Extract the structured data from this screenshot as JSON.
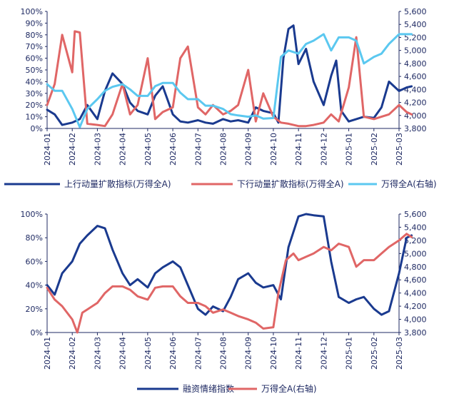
{
  "chart_data": [
    {
      "type": "line",
      "x_ticks": [
        "2024-01",
        "2024-02",
        "2024-03",
        "2024-04",
        "2024-05",
        "2024-06",
        "2024-07",
        "2024-08",
        "2024-09",
        "2024-10",
        "2024-11",
        "2024-12",
        "2025-01",
        "2025-02",
        "2025-03"
      ],
      "y_left": {
        "min": 0,
        "max": 100,
        "step": 10,
        "tick_labels": [
          "0%",
          "10%",
          "20%",
          "30%",
          "40%",
          "50%",
          "60%",
          "70%",
          "80%",
          "90%",
          "100%"
        ]
      },
      "y_right": {
        "min": 3800,
        "max": 5600,
        "step": 200,
        "tick_labels": [
          "3,800",
          "4,000",
          "4,200",
          "4,400",
          "4,600",
          "4,800",
          "5,000",
          "5,200",
          "5,400",
          "5,600"
        ]
      },
      "grid": false,
      "legend_position": "bottom",
      "series": [
        {
          "name": "上行动量扩散指标(万得全A)",
          "axis": "left",
          "color": "#1a3a8f",
          "x": [
            0,
            0.3,
            0.6,
            1,
            1.3,
            1.6,
            2,
            2.3,
            2.6,
            3,
            3.3,
            3.6,
            4,
            4.3,
            4.6,
            5,
            5.3,
            5.6,
            6,
            6.3,
            6.6,
            7,
            7.3,
            7.6,
            8,
            8.3,
            8.6,
            9,
            9.2,
            9.4,
            9.6,
            9.8,
            10,
            10.3,
            10.6,
            11,
            11.3,
            11.5,
            11.7,
            12,
            12.3,
            12.6,
            13,
            13.3,
            13.6,
            14,
            14.3,
            14.5
          ],
          "values": [
            16,
            12,
            3,
            5,
            8,
            20,
            8,
            32,
            47,
            38,
            22,
            15,
            12,
            28,
            36,
            12,
            6,
            5,
            7,
            5,
            4,
            8,
            6,
            7,
            5,
            18,
            15,
            13,
            5,
            60,
            85,
            88,
            55,
            68,
            40,
            20,
            45,
            58,
            15,
            6,
            8,
            10,
            9,
            18,
            40,
            32,
            35,
            36
          ]
        },
        {
          "name": "下行动量扩散指标(万得全A)",
          "axis": "left",
          "color": "#e06666",
          "x": [
            0,
            0.3,
            0.6,
            1,
            1.1,
            1.3,
            1.6,
            2,
            2.3,
            2.6,
            3,
            3.3,
            3.6,
            4,
            4.3,
            4.6,
            5,
            5.3,
            5.6,
            6,
            6.3,
            6.6,
            7,
            7.3,
            7.6,
            8,
            8.3,
            8.6,
            9,
            9.3,
            9.6,
            10,
            10.3,
            10.6,
            11,
            11.3,
            11.6,
            12,
            12.3,
            12.6,
            13,
            13.3,
            13.6,
            14,
            14.3,
            14.5
          ],
          "values": [
            20,
            38,
            80,
            48,
            83,
            82,
            4,
            3,
            2,
            12,
            38,
            12,
            20,
            60,
            8,
            14,
            18,
            60,
            70,
            18,
            12,
            20,
            12,
            15,
            20,
            50,
            6,
            30,
            10,
            5,
            4,
            2,
            2,
            3,
            5,
            12,
            6,
            35,
            78,
            10,
            8,
            10,
            12,
            20,
            14,
            12
          ]
        },
        {
          "name": "万得全A(右轴)",
          "axis": "right",
          "color": "#5bc8f0",
          "x": [
            0,
            0.3,
            0.6,
            1,
            1.3,
            1.6,
            2,
            2.3,
            2.6,
            3,
            3.3,
            3.6,
            4,
            4.3,
            4.6,
            5,
            5.3,
            5.6,
            6,
            6.3,
            6.6,
            7,
            7.3,
            7.6,
            8,
            8.3,
            8.6,
            9,
            9.3,
            9.6,
            10,
            10.3,
            10.6,
            11,
            11.3,
            11.6,
            12,
            12.3,
            12.6,
            13,
            13.3,
            13.6,
            14,
            14.3,
            14.5
          ],
          "values": [
            4480,
            4380,
            4380,
            4100,
            3820,
            4100,
            4250,
            4380,
            4440,
            4480,
            4400,
            4300,
            4300,
            4450,
            4500,
            4500,
            4350,
            4250,
            4250,
            4150,
            4150,
            4100,
            4020,
            4000,
            3980,
            4000,
            3950,
            3960,
            4900,
            5000,
            4950,
            5100,
            5150,
            5250,
            5000,
            5200,
            5200,
            5150,
            4800,
            4900,
            4950,
            5100,
            5250,
            5250,
            5250
          ]
        }
      ],
      "legend": [
        "上行动量扩散指标(万得全A)",
        "下行动量扩散指标(万得全A)",
        "万得全A(右轴)"
      ]
    },
    {
      "type": "line",
      "x_ticks": [
        "2024-01",
        "2024-02",
        "2024-03",
        "2024-04",
        "2024-05",
        "2024-06",
        "2024-07",
        "2024-08",
        "2024-09",
        "2024-10",
        "2024-11",
        "2024-12",
        "2025-01",
        "2025-02",
        "2025-03"
      ],
      "y_left": {
        "min": 0,
        "max": 100,
        "step": 20,
        "tick_labels": [
          "0%",
          "20%",
          "40%",
          "60%",
          "80%",
          "100%"
        ]
      },
      "y_right": {
        "min": 3800,
        "max": 5600,
        "step": 200,
        "tick_labels": [
          "3,800",
          "4,000",
          "4,200",
          "4,400",
          "4,600",
          "4,800",
          "5,000",
          "5,200",
          "5,400",
          "5,600"
        ]
      },
      "grid": false,
      "legend_position": "bottom",
      "series": [
        {
          "name": "融资情绪指数",
          "axis": "left",
          "color": "#1a3a8f",
          "x": [
            0,
            0.3,
            0.6,
            1,
            1.3,
            1.6,
            2,
            2.3,
            2.6,
            3,
            3.3,
            3.6,
            4,
            4.3,
            4.6,
            5,
            5.3,
            5.6,
            6,
            6.3,
            6.6,
            7,
            7.3,
            7.6,
            8,
            8.3,
            8.6,
            9,
            9.3,
            9.6,
            10,
            10.3,
            10.6,
            11,
            11.3,
            11.6,
            12,
            12.3,
            12.6,
            13,
            13.3,
            13.6,
            14,
            14.3,
            14.5
          ],
          "values": [
            40,
            32,
            50,
            60,
            75,
            82,
            90,
            88,
            70,
            50,
            40,
            45,
            38,
            50,
            55,
            60,
            55,
            40,
            20,
            15,
            22,
            18,
            30,
            45,
            50,
            42,
            38,
            40,
            28,
            72,
            98,
            100,
            99,
            98,
            60,
            30,
            25,
            28,
            30,
            20,
            15,
            18,
            50,
            80,
            82
          ]
        },
        {
          "name": "万得全A(右轴)",
          "axis": "right",
          "color": "#e06666",
          "x": [
            0,
            0.3,
            0.6,
            1,
            1.2,
            1.4,
            1.6,
            2,
            2.3,
            2.6,
            3,
            3.3,
            3.6,
            4,
            4.3,
            4.6,
            5,
            5.3,
            5.6,
            6,
            6.3,
            6.6,
            7,
            7.3,
            7.6,
            8,
            8.3,
            8.6,
            9,
            9.2,
            9.5,
            9.8,
            10,
            10.3,
            10.6,
            11,
            11.3,
            11.6,
            12,
            12.3,
            12.6,
            13,
            13.3,
            13.6,
            14,
            14.3,
            14.5
          ],
          "values": [
            4480,
            4300,
            4200,
            4000,
            3800,
            4100,
            4150,
            4250,
            4400,
            4500,
            4500,
            4450,
            4350,
            4300,
            4480,
            4500,
            4500,
            4350,
            4250,
            4250,
            4200,
            4100,
            4150,
            4100,
            4050,
            4000,
            3950,
            3860,
            3880,
            4400,
            4900,
            5000,
            4900,
            4950,
            5000,
            5100,
            5050,
            5150,
            5100,
            4800,
            4900,
            4900,
            5000,
            5100,
            5200,
            5300,
            5250
          ]
        }
      ],
      "legend": [
        "融资情绪指数",
        "万得全A(右轴)"
      ]
    }
  ]
}
